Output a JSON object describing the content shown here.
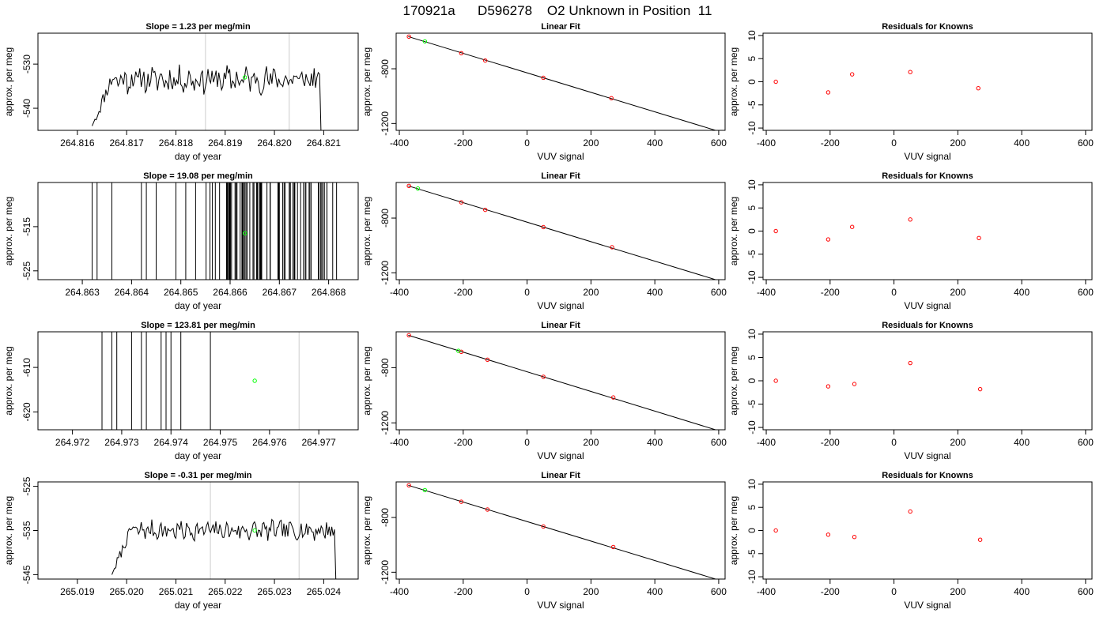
{
  "page_title": "170921a      D596278    O2 Unknown in Position  11",
  "colors": {
    "line": "#000000",
    "known_point": "#ff0000",
    "unknown_point": "#00ff00",
    "ref_line": "#cccccc",
    "frame": "#000000"
  },
  "chart_data": [
    {
      "type": "line",
      "title": "Slope =  1.23  per meg/min",
      "xlabel": "day of year",
      "ylabel": "approx. per meg",
      "xlim": [
        264.8152,
        264.8217
      ],
      "ylim": [
        -545,
        -523
      ],
      "xticks": [
        "264.816",
        "264.817",
        "264.818",
        "264.819",
        "264.820",
        "264.821"
      ],
      "xtick_values": [
        264.816,
        264.817,
        264.818,
        264.819,
        264.82,
        264.821
      ],
      "yticks": [
        "-530",
        "-540"
      ],
      "ytick_values": [
        -530,
        -540
      ],
      "vlines": [
        264.8186,
        264.8203
      ],
      "series_x_range": [
        264.8163,
        264.821
      ],
      "series_level": -533.5,
      "series_start": -544,
      "series_end": -545,
      "series_noise": 2.2,
      "series_seed": 11,
      "green_point": {
        "x": 264.8194,
        "y": -533
      }
    },
    {
      "type": "scatter",
      "title": "Linear Fit",
      "xlabel": "VUV signal",
      "ylabel": "approx. per meg",
      "xlim": [
        -410,
        620
      ],
      "ylim": [
        -1250,
        -540
      ],
      "xticks": [
        "-400",
        "-200",
        "0",
        "200",
        "400",
        "600"
      ],
      "xtick_values": [
        -400,
        -200,
        0,
        200,
        400,
        600
      ],
      "yticks": [
        "-800",
        "-1200"
      ],
      "ytick_values": [
        -800,
        -1200
      ],
      "fit_line": {
        "x": [
          -372,
          590
        ],
        "y": [
          -565,
          -1250
        ]
      },
      "known_points": [
        {
          "x": -370,
          "y": -565
        },
        {
          "x": -206,
          "y": -686
        },
        {
          "x": -131,
          "y": -740
        },
        {
          "x": 51,
          "y": -866
        },
        {
          "x": 264,
          "y": -1015
        }
      ],
      "unknown_points": [
        {
          "x": -320,
          "y": -600
        }
      ]
    },
    {
      "type": "scatter",
      "title": "Residuals for Knowns",
      "xlabel": "VUV signal",
      "ylabel": "approx. per meg",
      "xlim": [
        -410,
        620
      ],
      "ylim": [
        -10.5,
        10.5
      ],
      "xticks": [
        "-400",
        "-200",
        "0",
        "200",
        "400",
        "600"
      ],
      "xtick_values": [
        -400,
        -200,
        0,
        200,
        400,
        600
      ],
      "yticks": [
        "10",
        "5",
        "0",
        "-5",
        "-10"
      ],
      "ytick_values": [
        10,
        5,
        0,
        -5,
        -10
      ],
      "known_points": [
        {
          "x": -370,
          "y": 0.0
        },
        {
          "x": -206,
          "y": -2.3
        },
        {
          "x": -131,
          "y": 1.6
        },
        {
          "x": 51,
          "y": 2.1
        },
        {
          "x": 264,
          "y": -1.4
        }
      ]
    },
    {
      "type": "line",
      "title": "Slope =  19.08  per meg/min",
      "xlabel": "day of year",
      "ylabel": "approx. per meg",
      "xlim": [
        264.8621,
        264.8686
      ],
      "ylim": [
        -527,
        -505
      ],
      "xticks": [
        "264.863",
        "264.864",
        "264.865",
        "264.866",
        "264.867",
        "264.868"
      ],
      "xtick_values": [
        264.863,
        264.864,
        264.865,
        264.866,
        264.867,
        264.868
      ],
      "yticks": [
        "-515",
        "-525"
      ],
      "ytick_values": [
        -515,
        -525
      ],
      "vlines": [],
      "spikes": [
        264.8632,
        264.8633,
        264.8636,
        264.8642,
        264.8643,
        264.8645,
        264.8649,
        264.8651,
        264.8653,
        264.8657,
        264.866,
        264.8661,
        264.8663,
        264.8664,
        264.8666,
        264.867,
        264.8672,
        264.8673,
        264.8675,
        264.8678
      ],
      "dense_spikes": {
        "from": 264.8655,
        "to": 264.8682,
        "count": 60,
        "seed": 3
      },
      "green_point": {
        "x": 264.8663,
        "y": -516.5
      }
    },
    {
      "type": "scatter",
      "title": "Linear Fit",
      "xlabel": "VUV signal",
      "ylabel": "approx. per meg",
      "xlim": [
        -410,
        620
      ],
      "ylim": [
        -1250,
        -540
      ],
      "xticks": [
        "-400",
        "-200",
        "0",
        "200",
        "400",
        "600"
      ],
      "xtick_values": [
        -400,
        -200,
        0,
        200,
        400,
        600
      ],
      "yticks": [
        "-800",
        "-1200"
      ],
      "ytick_values": [
        -800,
        -1200
      ],
      "fit_line": {
        "x": [
          -372,
          590
        ],
        "y": [
          -565,
          -1250
        ]
      },
      "known_points": [
        {
          "x": -370,
          "y": -565
        },
        {
          "x": -206,
          "y": -685
        },
        {
          "x": -131,
          "y": -740
        },
        {
          "x": 51,
          "y": -866
        },
        {
          "x": 266,
          "y": -1013
        }
      ],
      "unknown_points": [
        {
          "x": -342,
          "y": -584
        }
      ]
    },
    {
      "type": "scatter",
      "title": "Residuals for Knowns",
      "xlabel": "VUV signal",
      "ylabel": "approx. per meg",
      "xlim": [
        -410,
        620
      ],
      "ylim": [
        -10.5,
        10.5
      ],
      "xticks": [
        "-400",
        "-200",
        "0",
        "200",
        "400",
        "600"
      ],
      "xtick_values": [
        -400,
        -200,
        0,
        200,
        400,
        600
      ],
      "yticks": [
        "10",
        "5",
        "0",
        "-5",
        "-10"
      ],
      "ytick_values": [
        10,
        5,
        0,
        -5,
        -10
      ],
      "known_points": [
        {
          "x": -370,
          "y": 0.0
        },
        {
          "x": -206,
          "y": -1.8
        },
        {
          "x": -131,
          "y": 0.9
        },
        {
          "x": 51,
          "y": 2.5
        },
        {
          "x": 266,
          "y": -1.5
        }
      ]
    },
    {
      "type": "line",
      "title": "Slope =  123.81  per meg/min",
      "xlabel": "day of year",
      "ylabel": "approx. per meg",
      "xlim": [
        264.9713,
        264.9778
      ],
      "ylim": [
        -624,
        -602
      ],
      "xticks": [
        "264.972",
        "264.973",
        "264.974",
        "264.975",
        "264.976",
        "264.977"
      ],
      "xtick_values": [
        264.972,
        264.973,
        264.974,
        264.975,
        264.976,
        264.977
      ],
      "yticks": [
        "-610",
        "-620"
      ],
      "ytick_values": [
        -610,
        -620
      ],
      "vlines": [
        264.9766
      ],
      "spikes": [
        264.9726,
        264.9728,
        264.9729,
        264.9732,
        264.9734,
        264.9735,
        264.9738,
        264.9739,
        264.974,
        264.9742,
        264.9748
      ],
      "green_point": {
        "x": 264.9757,
        "y": -613
      }
    },
    {
      "type": "scatter",
      "title": "Linear Fit",
      "xlabel": "VUV signal",
      "ylabel": "approx. per meg",
      "xlim": [
        -410,
        620
      ],
      "ylim": [
        -1250,
        -540
      ],
      "xticks": [
        "-400",
        "-200",
        "0",
        "200",
        "400",
        "600"
      ],
      "xtick_values": [
        -400,
        -200,
        0,
        200,
        400,
        600
      ],
      "yticks": [
        "-800",
        "-1200"
      ],
      "ytick_values": [
        -800,
        -1200
      ],
      "fit_line": {
        "x": [
          -372,
          590
        ],
        "y": [
          -565,
          -1250
        ]
      },
      "known_points": [
        {
          "x": -370,
          "y": -565
        },
        {
          "x": -206,
          "y": -685
        },
        {
          "x": -124,
          "y": -742
        },
        {
          "x": 51,
          "y": -866
        },
        {
          "x": 270,
          "y": -1016
        }
      ],
      "unknown_points": [
        {
          "x": -215,
          "y": -678
        }
      ]
    },
    {
      "type": "scatter",
      "title": "Residuals for Knowns",
      "xlabel": "VUV signal",
      "ylabel": "approx. per meg",
      "xlim": [
        -410,
        620
      ],
      "ylim": [
        -10.5,
        10.5
      ],
      "xticks": [
        "-400",
        "-200",
        "0",
        "200",
        "400",
        "600"
      ],
      "xtick_values": [
        -400,
        -200,
        0,
        200,
        400,
        600
      ],
      "yticks": [
        "10",
        "5",
        "0",
        "-5",
        "-10"
      ],
      "ytick_values": [
        10,
        5,
        0,
        -5,
        -10
      ],
      "known_points": [
        {
          "x": -370,
          "y": 0.0
        },
        {
          "x": -206,
          "y": -1.2
        },
        {
          "x": -124,
          "y": -0.7
        },
        {
          "x": 51,
          "y": 3.8
        },
        {
          "x": 270,
          "y": -1.8
        }
      ]
    },
    {
      "type": "line",
      "title": "Slope =  -0.31  per meg/min",
      "xlabel": "day of year",
      "ylabel": "approx. per meg",
      "xlim": [
        265.0182,
        265.0247
      ],
      "ylim": [
        -546,
        -524
      ],
      "xticks": [
        "265.019",
        "265.020",
        "265.021",
        "265.022",
        "265.023",
        "265.024"
      ],
      "xtick_values": [
        265.019,
        265.02,
        265.021,
        265.022,
        265.023,
        265.024
      ],
      "yticks": [
        "-525",
        "-535",
        "-545"
      ],
      "ytick_values": [
        -525,
        -535,
        -545
      ],
      "vlines": [
        265.0217,
        265.0235
      ],
      "series_x_range": [
        265.0197,
        265.0243
      ],
      "series_level": -535,
      "series_start": -545,
      "series_end": -546,
      "series_noise": 1.6,
      "series_seed": 7,
      "green_point": {
        "x": 265.0226,
        "y": -535
      }
    },
    {
      "type": "scatter",
      "title": "Linear Fit",
      "xlabel": "VUV signal",
      "ylabel": "approx. per meg",
      "xlim": [
        -410,
        620
      ],
      "ylim": [
        -1250,
        -540
      ],
      "xticks": [
        "-400",
        "-200",
        "0",
        "200",
        "400",
        "600"
      ],
      "xtick_values": [
        -400,
        -200,
        0,
        200,
        400,
        600
      ],
      "yticks": [
        "-800",
        "-1200"
      ],
      "ytick_values": [
        -800,
        -1200
      ],
      "fit_line": {
        "x": [
          -372,
          590
        ],
        "y": [
          -565,
          -1250
        ]
      },
      "known_points": [
        {
          "x": -370,
          "y": -565
        },
        {
          "x": -206,
          "y": -685
        },
        {
          "x": -124,
          "y": -742
        },
        {
          "x": 51,
          "y": -866
        },
        {
          "x": 270,
          "y": -1016
        }
      ],
      "unknown_points": [
        {
          "x": -320,
          "y": -600
        }
      ]
    },
    {
      "type": "scatter",
      "title": "Residuals for Knowns",
      "xlabel": "VUV signal",
      "ylabel": "approx. per meg",
      "xlim": [
        -410,
        620
      ],
      "ylim": [
        -10.5,
        10.5
      ],
      "xticks": [
        "-400",
        "-200",
        "0",
        "200",
        "400",
        "600"
      ],
      "xtick_values": [
        -400,
        -200,
        0,
        200,
        400,
        600
      ],
      "yticks": [
        "10",
        "5",
        "0",
        "-5",
        "-10"
      ],
      "ytick_values": [
        10,
        5,
        0,
        -5,
        -10
      ],
      "known_points": [
        {
          "x": -370,
          "y": 0.0
        },
        {
          "x": -206,
          "y": -0.9
        },
        {
          "x": -124,
          "y": -1.4
        },
        {
          "x": 51,
          "y": 4.1
        },
        {
          "x": 270,
          "y": -2.0
        }
      ]
    }
  ]
}
